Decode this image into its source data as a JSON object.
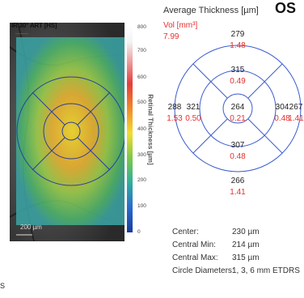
{
  "fundus": {
    "header": "IR 30° ART [HS]",
    "subheader": "——",
    "scale_label": "200 µm"
  },
  "colorbar": {
    "title": "Retinal Thickness [µm]",
    "ticks": [
      "800",
      "700",
      "600",
      "500",
      "400",
      "300",
      "200",
      "100",
      "0"
    ]
  },
  "chart": {
    "title": "Average Thickness [µm]",
    "eye": "OS",
    "vol_label": "Vol [mm³]",
    "vol_total": "7.99"
  },
  "chart_data": {
    "type": "table",
    "title": "Average Thickness [µm]",
    "sectors": [
      {
        "sector": "Outer Superior",
        "thickness": 279,
        "volume": 1.48
      },
      {
        "sector": "Inner Superior",
        "thickness": 315,
        "volume": 0.49
      },
      {
        "sector": "Outer Temporal",
        "thickness": 288,
        "volume": 1.53
      },
      {
        "sector": "Inner Temporal",
        "thickness": 321,
        "volume": 0.5
      },
      {
        "sector": "Center",
        "thickness": 264,
        "volume": 0.21
      },
      {
        "sector": "Inner Nasal",
        "thickness": 304,
        "volume": 0.48
      },
      {
        "sector": "Outer Nasal",
        "thickness": 267,
        "volume": 1.41
      },
      {
        "sector": "Inner Inferior",
        "thickness": 307,
        "volume": 0.48
      },
      {
        "sector": "Outer Inferior",
        "thickness": 266,
        "volume": 1.41
      }
    ],
    "total_volume": 7.99
  },
  "sectors": {
    "outer_sup": {
      "t": "279",
      "v": "1.48"
    },
    "inner_sup": {
      "t": "315",
      "v": "0.49"
    },
    "outer_temp": {
      "t": "288",
      "v": "1.53"
    },
    "inner_temp": {
      "t": "321",
      "v": "0.50"
    },
    "center": {
      "t": "264",
      "v": "0.21"
    },
    "inner_nasal": {
      "t": "304",
      "v": "0.48"
    },
    "outer_nasal": {
      "t": "267",
      "v": "1.41"
    },
    "inner_inf": {
      "t": "307",
      "v": "0.48"
    },
    "outer_inf": {
      "t": "266",
      "v": "1.41"
    }
  },
  "stats": [
    {
      "label": "Center:",
      "value": "230 µm"
    },
    {
      "label": "Central Min:",
      "value": "214 µm"
    },
    {
      "label": "Central Max:",
      "value": "315 µm"
    },
    {
      "label": "Circle Diameters:",
      "value": "1, 3, 6 mm ETDRS"
    }
  ],
  "corner_text": "S",
  "colors": {
    "ring": "#3b5bd0",
    "volume_text": "#e53030"
  }
}
